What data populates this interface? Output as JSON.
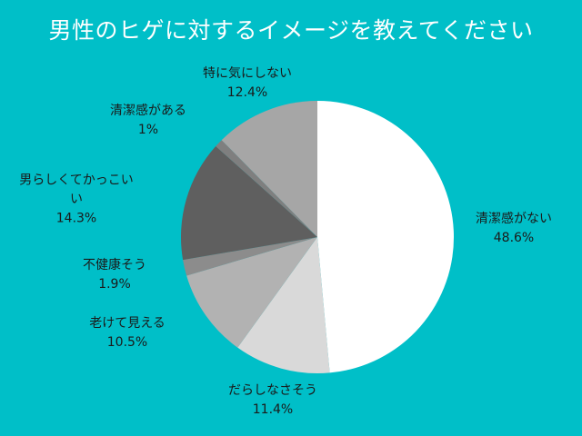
{
  "chart_data": {
    "type": "pie",
    "title": "男性のヒゲに対するイメージを教えてください",
    "slices": [
      {
        "label": "清潔感がない",
        "value": 48.6,
        "value_label": "48.6%",
        "color": "#ffffff"
      },
      {
        "label": "だらしなさそう",
        "value": 11.4,
        "value_label": "11.4%",
        "color": "#d9d9d9"
      },
      {
        "label": "老けて見える",
        "value": 10.5,
        "value_label": "10.5%",
        "color": "#b2b2b2"
      },
      {
        "label": "不健康そう",
        "value": 1.9,
        "value_label": "1.9%",
        "color": "#8c8c8c"
      },
      {
        "label": "男らしくてかっこい\nい",
        "value": 14.3,
        "value_label": "14.3%",
        "color": "#5f5f5f"
      },
      {
        "label": "清潔感がある",
        "value": 1,
        "value_label": "1%",
        "color": "#7f7f7f"
      },
      {
        "label": "特に気にしない",
        "value": 12.4,
        "value_label": "12.4%",
        "color": "#a6a6a6"
      }
    ],
    "start": "12 o'clock",
    "direction": "clockwise",
    "legend": "none"
  }
}
